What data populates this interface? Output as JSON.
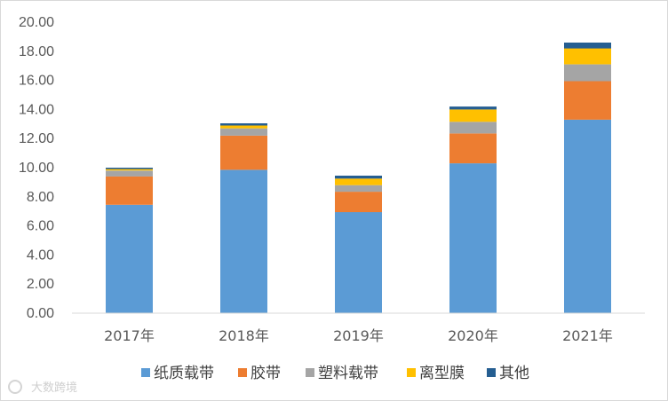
{
  "chart_data": {
    "type": "bar",
    "stacked": true,
    "categories": [
      "2017年",
      "2018年",
      "2019年",
      "2020年",
      "2021年"
    ],
    "series": [
      {
        "name": "纸质载带",
        "color": "#5b9bd5",
        "values": [
          7.45,
          9.85,
          6.95,
          10.3,
          13.3
        ]
      },
      {
        "name": "胶带",
        "color": "#ed7d31",
        "values": [
          1.95,
          2.35,
          1.4,
          2.05,
          2.65
        ]
      },
      {
        "name": "塑料载带",
        "color": "#a5a5a5",
        "values": [
          0.4,
          0.5,
          0.45,
          0.8,
          1.15
        ]
      },
      {
        "name": "离型膜",
        "color": "#ffc000",
        "values": [
          0.1,
          0.2,
          0.45,
          0.85,
          1.1
        ]
      },
      {
        "name": "其他",
        "color": "#255e91",
        "values": [
          0.1,
          0.15,
          0.2,
          0.2,
          0.4
        ]
      }
    ],
    "title": "",
    "xlabel": "",
    "ylabel": "",
    "ylim": [
      0,
      20
    ],
    "yticks": [
      "0.00",
      "2.00",
      "4.00",
      "6.00",
      "8.00",
      "10.00",
      "12.00",
      "14.00",
      "16.00",
      "18.00",
      "20.00"
    ],
    "grid": false,
    "legend": "bottom"
  },
  "watermark": {
    "text": "大数跨境"
  }
}
